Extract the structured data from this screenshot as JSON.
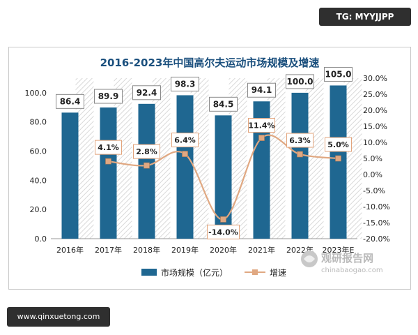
{
  "badges": {
    "top_right": "TG: MYYJJPP",
    "bottom_left": "www.qinxuetong.com"
  },
  "watermark": {
    "brand": "观研报告网",
    "url": "chinabaogao.com"
  },
  "colors": {
    "bar": "#1f6791",
    "line": "#e0a882",
    "marker": "#e0a882",
    "label_border": "#e2a47c",
    "title": "#1a4f7d"
  },
  "chart_data": {
    "type": "bar",
    "title": "2016-2023年中国高尔夫运动市场规模及增速",
    "categories": [
      "2016年",
      "2017年",
      "2018年",
      "2019年",
      "2020年",
      "2021年",
      "2022年",
      "2023年E"
    ],
    "series": [
      {
        "name": "市场规模（亿元）",
        "type": "bar",
        "axis": "left",
        "values": [
          86.4,
          89.9,
          92.4,
          98.3,
          84.5,
          94.1,
          100.0,
          105.0
        ],
        "labels": [
          "86.4",
          "89.9",
          "92.4",
          "98.3",
          "84.5",
          "94.1",
          "100.0",
          "105.0"
        ]
      },
      {
        "name": "增速",
        "type": "line",
        "axis": "right",
        "values": [
          null,
          4.1,
          2.8,
          6.4,
          -14.0,
          11.4,
          6.3,
          5.0
        ],
        "labels": [
          "",
          "4.1%",
          "2.8%",
          "6.4%",
          "-14.0%",
          "11.4%",
          "6.3%",
          "5.0%"
        ]
      }
    ],
    "y_left": {
      "min": 0,
      "max": 110,
      "ticks": [
        "0.0",
        "20.0",
        "40.0",
        "60.0",
        "80.0",
        "100.0"
      ]
    },
    "y_right": {
      "min": -20,
      "max": 30,
      "ticks": [
        "-20.0%",
        "-15.0%",
        "-10.0%",
        "-5.0%",
        "0.0%",
        "5.0%",
        "10.0%",
        "15.0%",
        "20.0%",
        "25.0%",
        "30.0%"
      ]
    },
    "legend_position": "bottom",
    "grid": false
  }
}
